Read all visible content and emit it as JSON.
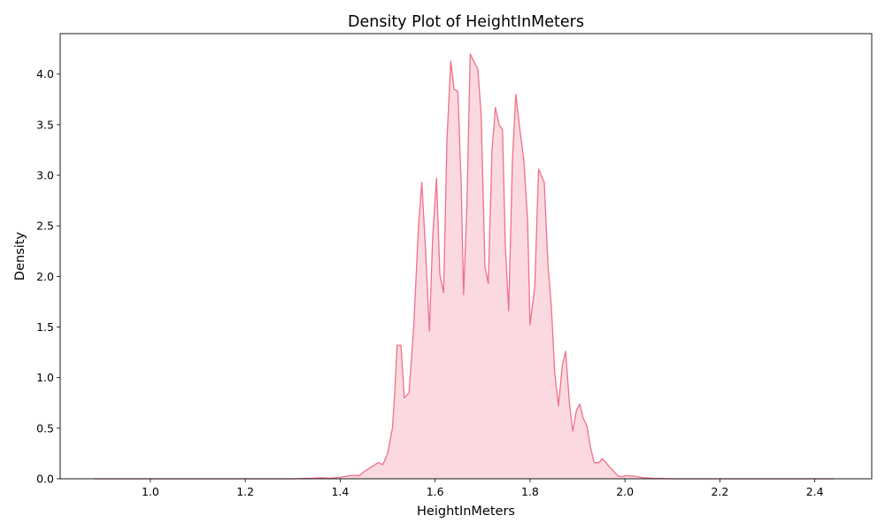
{
  "chart_data": {
    "type": "area",
    "title": "Density Plot of HeightInMeters",
    "xlabel": "HeightInMeters",
    "ylabel": "Density",
    "xlim": [
      0.81,
      2.52
    ],
    "ylim": [
      0,
      4.4
    ],
    "xticks": [
      "1.0",
      "1.2",
      "1.4",
      "1.6",
      "1.8",
      "2.0",
      "2.2",
      "2.4"
    ],
    "yticks": [
      "0.0",
      "0.5",
      "1.0",
      "1.5",
      "2.0",
      "2.5",
      "3.0",
      "3.5",
      "4.0"
    ],
    "grid": false,
    "line_color": "#f07089",
    "fill_color": "#fbd9e0",
    "series": [
      {
        "x": [
          0.88,
          1.0,
          1.2,
          1.3,
          1.34,
          1.36,
          1.38,
          1.4,
          1.42,
          1.43,
          1.44,
          1.45,
          1.47,
          1.48,
          1.49,
          1.5,
          1.51,
          1.515,
          1.52,
          1.528,
          1.535,
          1.545,
          1.555,
          1.565,
          1.572,
          1.58,
          1.588,
          1.595,
          1.603,
          1.61,
          1.618,
          1.625,
          1.633,
          1.64,
          1.648,
          1.655,
          1.66,
          1.667,
          1.674,
          1.68,
          1.69,
          1.697,
          1.705,
          1.712,
          1.72,
          1.727,
          1.735,
          1.742,
          1.748,
          1.755,
          1.763,
          1.77,
          1.78,
          1.787,
          1.795,
          1.8,
          1.81,
          1.818,
          1.83,
          1.838,
          1.845,
          1.852,
          1.86,
          1.868,
          1.875,
          1.883,
          1.89,
          1.898,
          1.905,
          1.912,
          1.92,
          1.927,
          1.935,
          1.945,
          1.952,
          1.96,
          1.967,
          1.975,
          1.985,
          1.992,
          2.0,
          2.01,
          2.02,
          2.04,
          2.06,
          2.1,
          2.2,
          2.3,
          2.44
        ],
        "y": [
          0,
          0,
          0,
          0,
          0.005,
          0.01,
          0.005,
          0.015,
          0.03,
          0.035,
          0.03,
          0.07,
          0.13,
          0.16,
          0.14,
          0.25,
          0.5,
          0.85,
          1.32,
          1.32,
          0.8,
          0.85,
          1.5,
          2.5,
          2.93,
          2.25,
          1.46,
          2.4,
          2.97,
          2.02,
          1.84,
          3.35,
          4.13,
          3.85,
          3.83,
          2.9,
          1.82,
          2.7,
          4.2,
          4.14,
          4.05,
          3.6,
          2.1,
          1.93,
          3.25,
          3.67,
          3.5,
          3.45,
          2.3,
          1.66,
          3.15,
          3.8,
          3.4,
          3.15,
          2.55,
          1.52,
          1.9,
          3.06,
          2.93,
          2.1,
          1.7,
          1.05,
          0.72,
          1.12,
          1.26,
          0.75,
          0.47,
          0.68,
          0.74,
          0.6,
          0.52,
          0.32,
          0.16,
          0.16,
          0.2,
          0.16,
          0.12,
          0.08,
          0.03,
          0.02,
          0.03,
          0.03,
          0.025,
          0.01,
          0.005,
          0,
          0,
          0,
          0
        ]
      }
    ]
  }
}
